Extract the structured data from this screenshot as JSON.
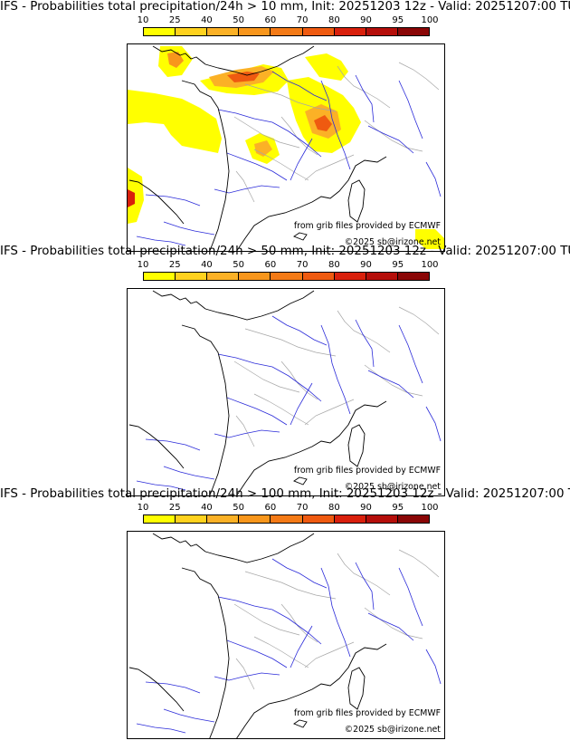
{
  "panels": [
    {
      "title": "IFS - Probabilities total precipitation/24h > 10 mm, Init: 20251203 12z - Valid: 20251207:00 TU",
      "threshold_mm": 10,
      "has_precip": true
    },
    {
      "title": "IFS - Probabilities total precipitation/24h > 50 mm, Init: 20251203 12z - Valid: 20251207:00 TU",
      "threshold_mm": 50,
      "has_precip": false
    },
    {
      "title": "IFS - Probabilities total precipitation/24h > 100 mm, Init: 20251203 12z - Valid: 20251207:00 TU",
      "threshold_mm": 100,
      "has_precip": false
    }
  ],
  "colorbar": {
    "ticks": [
      "10",
      "25",
      "40",
      "50",
      "60",
      "70",
      "80",
      "90",
      "95",
      "100"
    ],
    "colors": [
      "#ffff00",
      "#ffd21e",
      "#fbb126",
      "#f8961c",
      "#f47a16",
      "#ef5a10",
      "#d9200c",
      "#b50e0a",
      "#8a0606"
    ]
  },
  "credits": {
    "source": "from grib files provided by ECMWF",
    "copyright": "©2025 sb@irizone.net"
  },
  "colors": {
    "coast": "#000000",
    "rivers": "#2b2bd9",
    "borders": "#a6a6a6"
  }
}
